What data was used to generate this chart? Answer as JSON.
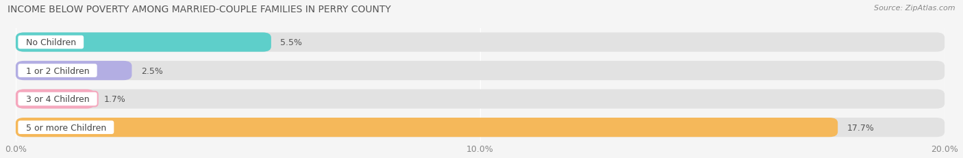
{
  "title": "INCOME BELOW POVERTY AMONG MARRIED-COUPLE FAMILIES IN PERRY COUNTY",
  "source": "Source: ZipAtlas.com",
  "categories": [
    "No Children",
    "1 or 2 Children",
    "3 or 4 Children",
    "5 or more Children"
  ],
  "values": [
    5.5,
    2.5,
    1.7,
    17.7
  ],
  "bar_colors": [
    "#5ecfca",
    "#b3aee3",
    "#f5a8be",
    "#f5b85a"
  ],
  "xlim": [
    0,
    20.0
  ],
  "xticks": [
    0.0,
    10.0,
    20.0
  ],
  "xticklabels": [
    "0.0%",
    "10.0%",
    "20.0%"
  ],
  "background_color": "#f5f5f5",
  "bar_bg_color": "#e2e2e2",
  "title_fontsize": 10,
  "source_fontsize": 8,
  "label_fontsize": 9,
  "value_fontsize": 9,
  "tick_fontsize": 9,
  "bar_height": 0.68,
  "bar_spacing": 1.0
}
